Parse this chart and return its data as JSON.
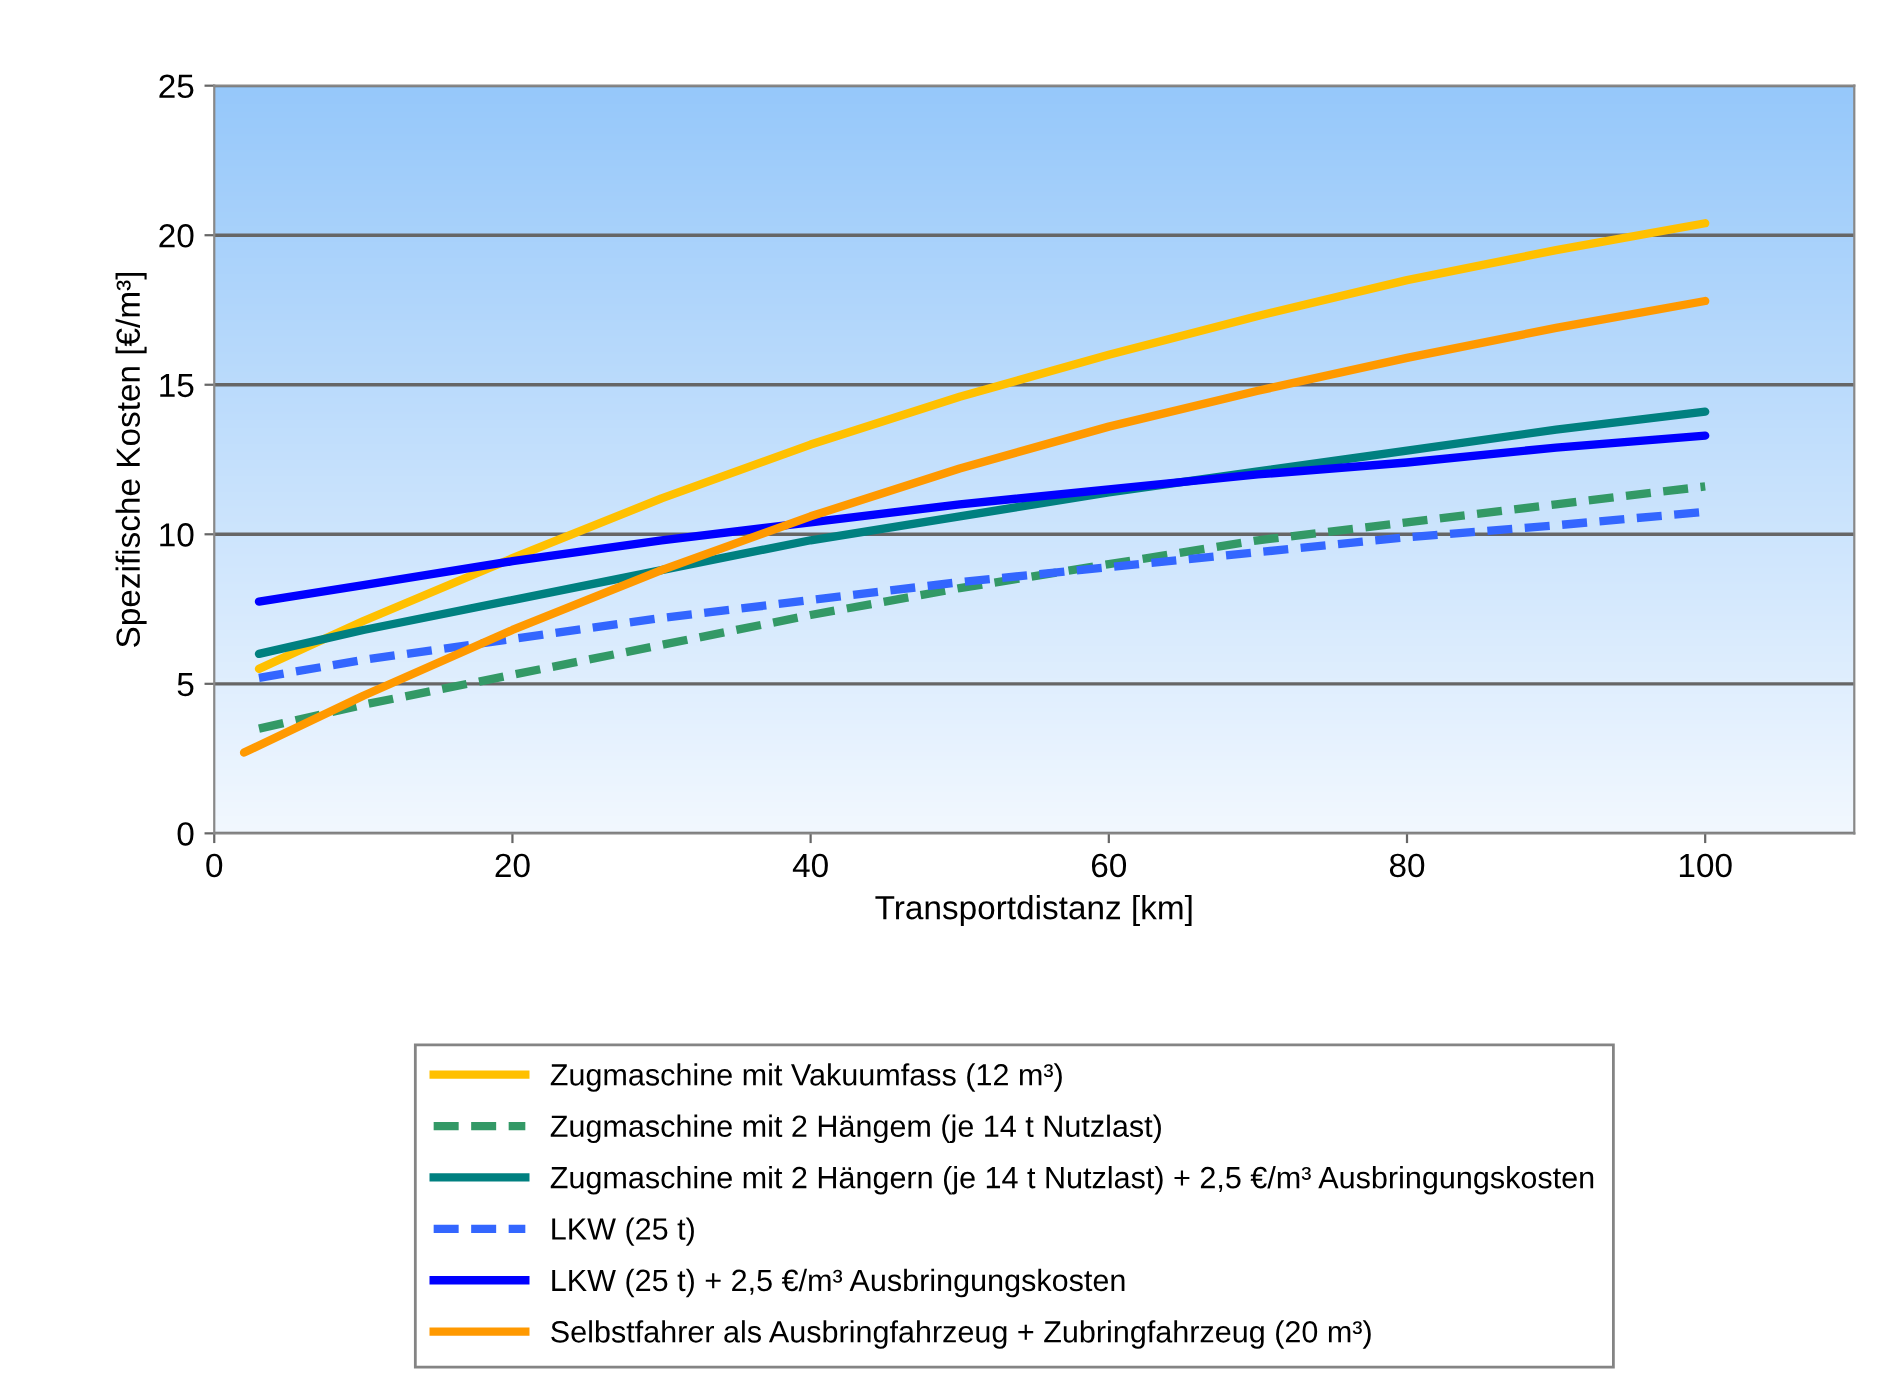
{
  "chart_data": {
    "type": "line",
    "xlabel": "Transportdistanz [km]",
    "ylabel": "Spezifische Kosten [€/m³]",
    "xlim": [
      0,
      110
    ],
    "xticks": [
      0,
      20,
      40,
      60,
      80,
      100
    ],
    "ylim": [
      0,
      25
    ],
    "yticks": [
      0,
      5,
      10,
      15,
      20,
      25
    ],
    "grid": "y",
    "legend": "bottom",
    "marker": "none",
    "series": [
      {
        "name": "Zugmaschine mit Vakuumfass (12 m³)",
        "color": "#ffc000",
        "line_style": "solid",
        "x": [
          3,
          10,
          20,
          30,
          40,
          50,
          60,
          70,
          80,
          90,
          100
        ],
        "values": [
          5.5,
          7.1,
          9.2,
          11.2,
          13.0,
          14.6,
          16.0,
          17.3,
          18.5,
          19.5,
          20.4
        ]
      },
      {
        "name": "Zugmaschine mit 2 Hängem (je 14 t Nutzlast)",
        "color": "#339966",
        "line_style": "dashed",
        "x": [
          3,
          10,
          20,
          30,
          40,
          50,
          60,
          70,
          80,
          90,
          100
        ],
        "values": [
          3.5,
          4.3,
          5.3,
          6.3,
          7.3,
          8.2,
          9.0,
          9.8,
          10.4,
          11.0,
          11.6
        ]
      },
      {
        "name": "Zugmaschine mit 2 Hängern (je 14 t Nutzlast) + 2,5 €/m³ Ausbringungskosten",
        "color": "#008080",
        "line_style": "solid",
        "x": [
          3,
          10,
          20,
          30,
          40,
          50,
          60,
          70,
          80,
          90,
          100
        ],
        "values": [
          6.0,
          6.8,
          7.8,
          8.8,
          9.8,
          10.6,
          11.4,
          12.1,
          12.8,
          13.5,
          14.1
        ]
      },
      {
        "name": "LKW (25 t)",
        "color": "#3366ff",
        "line_style": "dashed",
        "x": [
          3,
          10,
          20,
          30,
          40,
          50,
          60,
          70,
          80,
          90,
          100
        ],
        "values": [
          5.2,
          5.8,
          6.5,
          7.2,
          7.8,
          8.4,
          8.9,
          9.4,
          9.9,
          10.3,
          10.75
        ]
      },
      {
        "name": "LKW (25 t) + 2,5 €/m³ Ausbringungskosten",
        "color": "#0000ff",
        "line_style": "solid",
        "x": [
          3,
          10,
          20,
          30,
          40,
          50,
          60,
          70,
          80,
          90,
          100
        ],
        "values": [
          7.75,
          8.3,
          9.1,
          9.8,
          10.4,
          11.0,
          11.5,
          12.0,
          12.4,
          12.9,
          13.3
        ]
      },
      {
        "name": "Selbstfahrer als Ausbringfahrzeug + Zubringfahrzeug (20 m³)",
        "color": "#ff9900",
        "line_style": "solid",
        "x": [
          2,
          10,
          20,
          30,
          40,
          50,
          60,
          70,
          80,
          90,
          100
        ],
        "values": [
          2.7,
          4.6,
          6.8,
          8.8,
          10.6,
          12.2,
          13.6,
          14.8,
          15.9,
          16.9,
          17.8
        ]
      }
    ]
  }
}
